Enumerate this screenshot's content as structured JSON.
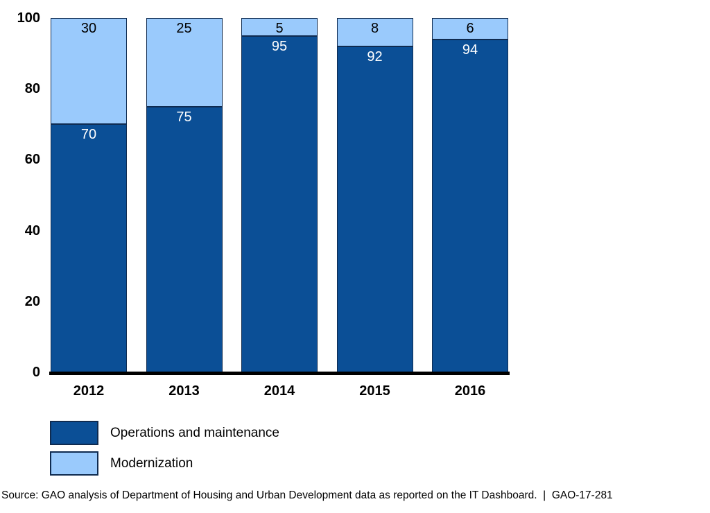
{
  "chart_data": {
    "type": "bar",
    "stacked": true,
    "title": "",
    "xlabel": "",
    "ylabel": "",
    "categories": [
      "2012",
      "2013",
      "2014",
      "2015",
      "2016"
    ],
    "series": [
      {
        "name": "Operations and maintenance",
        "color": "#0B4F96",
        "label_color": "#FFFFFF",
        "values": [
          70,
          75,
          95,
          92,
          94
        ]
      },
      {
        "name": "Modernization",
        "color": "#9ACAFC",
        "label_color": "#000000",
        "values": [
          30,
          25,
          5,
          8,
          6
        ]
      }
    ],
    "ylim": [
      0,
      100
    ],
    "yticks": [
      0,
      20,
      40,
      60,
      80,
      100
    ],
    "grid": false,
    "legend_position": "bottom-left",
    "source": "Source: GAO analysis of Department of Housing and Urban Development data as reported on the IT Dashboard.  |  GAO-17-281"
  },
  "colors": {
    "axis": "#000000",
    "bar_border": "#0F2B50",
    "background": "#FFFFFF"
  }
}
